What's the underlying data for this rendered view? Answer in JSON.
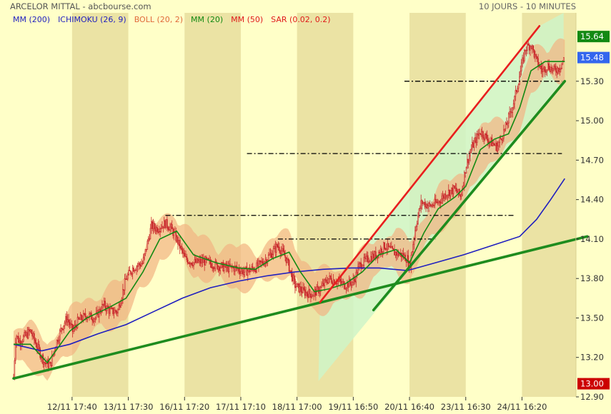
{
  "header": {
    "title": "ARCELOR MITTAL - abcbourse.com",
    "period": "10 JOURS - 10 MINUTES"
  },
  "legend": [
    {
      "label": "MM (200)",
      "color": "#1f1fbf"
    },
    {
      "label": "ICHIMOKU (26, 9)",
      "color": "#1f1fbf"
    },
    {
      "label": "BOLL (20, 2)",
      "color": "#e06a3a"
    },
    {
      "label": "MM (20)",
      "color": "#138a13"
    },
    {
      "label": "MM (50)",
      "color": "#e01b1b"
    },
    {
      "label": "SAR (0.02, 0.2)",
      "color": "#e01b1b"
    }
  ],
  "badges": {
    "high": {
      "value": "15.64",
      "color": "#138a13"
    },
    "last": {
      "value": "15.48",
      "color": "#3366ee"
    },
    "low": {
      "value": "13.00",
      "color": "#cc0000"
    }
  },
  "colors": {
    "background": "#ffffc8",
    "day_band": "#ebe3a4",
    "candle": "#c8262a",
    "channel_fill": "#cff5c8",
    "bollinger_fill": "#f2b482",
    "trendline_green": "#1e8c1e",
    "trendline_red": "#e81e1e",
    "mm200": "#1f1fbf",
    "mm20": "#138a13"
  },
  "chart_data": {
    "type": "candlestick",
    "title": "ARCELOR MITTAL - abcbourse.com",
    "interval": "10 minutes",
    "span": "10 days",
    "y_axis": {
      "range": [
        12.9,
        15.82
      ],
      "ticks": [
        "15.30",
        "15.00",
        "14.70",
        "14.40",
        "14.10",
        "13.80",
        "13.50",
        "13.20",
        "12.90"
      ]
    },
    "x_axis": {
      "tick_labels": [
        "12/11 17:40",
        "13/11 17:30",
        "16/11 17:20",
        "17/11 17:10",
        "18/11 17:00",
        "19/11 16:50",
        "20/11 16:40",
        "23/11 16:30",
        "24/11 16:20"
      ]
    },
    "grid": false,
    "day_boundaries": [
      1.04,
      2.04,
      3.04,
      4.04,
      5.04,
      6.04,
      7.04,
      8.04,
      9.04
    ],
    "close_path": [
      [
        0.0,
        13.05
      ],
      [
        0.04,
        13.38
      ],
      [
        0.1,
        13.32
      ],
      [
        0.2,
        13.36
      ],
      [
        0.3,
        13.4
      ],
      [
        0.4,
        13.3
      ],
      [
        0.55,
        13.16
      ],
      [
        0.65,
        13.14
      ],
      [
        0.75,
        13.3
      ],
      [
        0.85,
        13.42
      ],
      [
        0.95,
        13.5
      ],
      [
        1.05,
        13.4
      ],
      [
        1.15,
        13.48
      ],
      [
        1.3,
        13.52
      ],
      [
        1.45,
        13.5
      ],
      [
        1.6,
        13.6
      ],
      [
        1.72,
        13.55
      ],
      [
        1.85,
        13.55
      ],
      [
        2.0,
        13.8
      ],
      [
        2.12,
        13.88
      ],
      [
        2.3,
        13.92
      ],
      [
        2.45,
        14.2
      ],
      [
        2.55,
        14.18
      ],
      [
        2.7,
        14.22
      ],
      [
        2.8,
        14.18
      ],
      [
        2.9,
        14.1
      ],
      [
        3.05,
        13.95
      ],
      [
        3.2,
        13.92
      ],
      [
        3.4,
        13.93
      ],
      [
        3.6,
        13.9
      ],
      [
        3.8,
        13.88
      ],
      [
        3.95,
        13.88
      ],
      [
        4.1,
        13.85
      ],
      [
        4.3,
        13.88
      ],
      [
        4.5,
        13.95
      ],
      [
        4.7,
        14.05
      ],
      [
        4.85,
        13.95
      ],
      [
        5.0,
        13.75
      ],
      [
        5.15,
        13.7
      ],
      [
        5.3,
        13.68
      ],
      [
        5.45,
        13.72
      ],
      [
        5.6,
        13.8
      ],
      [
        5.75,
        13.78
      ],
      [
        5.9,
        13.75
      ],
      [
        6.05,
        13.78
      ],
      [
        6.15,
        13.9
      ],
      [
        6.3,
        13.95
      ],
      [
        6.45,
        13.98
      ],
      [
        6.6,
        14.05
      ],
      [
        6.75,
        14.0
      ],
      [
        6.9,
        13.98
      ],
      [
        7.0,
        13.95
      ],
      [
        7.04,
        13.88
      ],
      [
        7.15,
        14.2
      ],
      [
        7.25,
        14.38
      ],
      [
        7.4,
        14.35
      ],
      [
        7.55,
        14.38
      ],
      [
        7.7,
        14.45
      ],
      [
        7.85,
        14.48
      ],
      [
        7.95,
        14.42
      ],
      [
        8.04,
        14.65
      ],
      [
        8.15,
        14.8
      ],
      [
        8.3,
        14.92
      ],
      [
        8.45,
        14.85
      ],
      [
        8.6,
        14.8
      ],
      [
        8.75,
        14.95
      ],
      [
        8.9,
        15.15
      ],
      [
        9.0,
        15.35
      ],
      [
        9.1,
        15.55
      ],
      [
        9.2,
        15.58
      ],
      [
        9.3,
        15.45
      ],
      [
        9.4,
        15.38
      ],
      [
        9.5,
        15.42
      ],
      [
        9.6,
        15.38
      ],
      [
        9.7,
        15.4
      ],
      [
        9.8,
        15.48
      ]
    ],
    "mm20_path": [
      [
        0.0,
        13.3
      ],
      [
        0.3,
        13.3
      ],
      [
        0.6,
        13.16
      ],
      [
        0.8,
        13.28
      ],
      [
        1.0,
        13.4
      ],
      [
        1.3,
        13.5
      ],
      [
        1.7,
        13.58
      ],
      [
        2.0,
        13.65
      ],
      [
        2.3,
        13.85
      ],
      [
        2.6,
        14.1
      ],
      [
        2.9,
        14.16
      ],
      [
        3.2,
        13.98
      ],
      [
        3.6,
        13.92
      ],
      [
        4.0,
        13.88
      ],
      [
        4.3,
        13.87
      ],
      [
        4.6,
        13.95
      ],
      [
        4.9,
        14.0
      ],
      [
        5.1,
        13.85
      ],
      [
        5.35,
        13.7
      ],
      [
        5.6,
        13.72
      ],
      [
        5.9,
        13.76
      ],
      [
        6.2,
        13.85
      ],
      [
        6.5,
        13.98
      ],
      [
        6.8,
        14.02
      ],
      [
        7.04,
        13.92
      ],
      [
        7.3,
        14.15
      ],
      [
        7.55,
        14.33
      ],
      [
        7.85,
        14.42
      ],
      [
        8.04,
        14.5
      ],
      [
        8.3,
        14.78
      ],
      [
        8.55,
        14.86
      ],
      [
        8.8,
        14.9
      ],
      [
        9.0,
        15.1
      ],
      [
        9.2,
        15.38
      ],
      [
        9.45,
        15.45
      ],
      [
        9.8,
        15.45
      ]
    ],
    "mm200_path": [
      [
        0.0,
        13.3
      ],
      [
        0.5,
        13.25
      ],
      [
        1.0,
        13.3
      ],
      [
        1.5,
        13.38
      ],
      [
        2.0,
        13.45
      ],
      [
        2.5,
        13.55
      ],
      [
        3.0,
        13.65
      ],
      [
        3.5,
        13.73
      ],
      [
        4.0,
        13.78
      ],
      [
        4.5,
        13.82
      ],
      [
        5.0,
        13.85
      ],
      [
        5.5,
        13.87
      ],
      [
        6.0,
        13.88
      ],
      [
        6.5,
        13.88
      ],
      [
        7.0,
        13.86
      ],
      [
        7.5,
        13.92
      ],
      [
        8.0,
        13.98
      ],
      [
        8.5,
        14.05
      ],
      [
        9.0,
        14.12
      ],
      [
        9.3,
        14.25
      ],
      [
        9.55,
        14.4
      ],
      [
        9.8,
        14.56
      ]
    ],
    "trendlines": [
      {
        "color": "green",
        "from": [
          0.0,
          13.04
        ],
        "to": [
          10.2,
          14.12
        ]
      },
      {
        "color": "green",
        "from": [
          6.4,
          13.56
        ],
        "to": [
          9.8,
          15.3
        ]
      },
      {
        "color": "red",
        "from": [
          5.45,
          13.62
        ],
        "to": [
          9.35,
          15.72
        ]
      }
    ],
    "horizontal_levels": [
      {
        "value": 15.3,
        "x_range": [
          6.95,
          9.75
        ]
      },
      {
        "value": 14.75,
        "x_range": [
          4.15,
          9.75
        ]
      },
      {
        "value": 14.28,
        "x_range": [
          2.7,
          8.9
        ]
      },
      {
        "value": 14.1,
        "x_range": [
          4.7,
          7.5
        ]
      }
    ]
  }
}
